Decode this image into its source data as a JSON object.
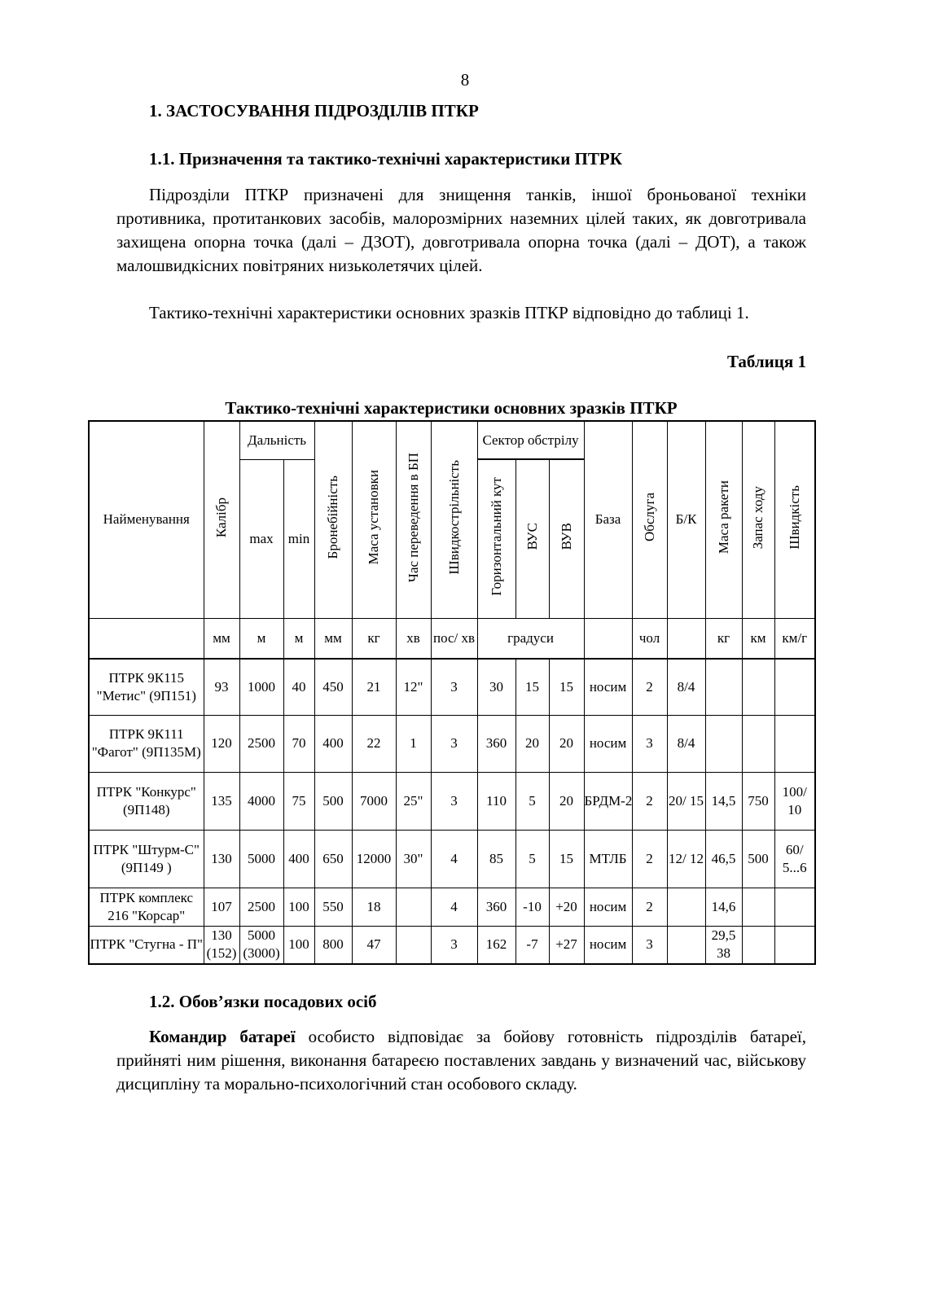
{
  "page_number": "8",
  "heading1": "1. ЗАСТОСУВАННЯ ПІДРОЗДІЛІВ ПТКР",
  "heading2": "1.1. Призначення та тактико-технічні характеристики ПТРК",
  "para1": "Підрозділи ПТКР призначені для знищення танків, іншої броньованої техніки противника, протитанкових засобів, малорозмірних наземних цілей таких, як довготривала захищена опорна точка (далі – ДЗОТ), довготривала опорна точка (далі – ДОТ), а також малошвидкісних повітряних низьколетячих цілей.",
  "para2": "Тактико-технічні характеристики основних зразків ПТКР відповідно до таблиці 1.",
  "table_label": "Таблиця 1",
  "table": {
    "title": "Тактико-технічні характеристики основних зразків ПТКР",
    "headers": {
      "name": "Найменування",
      "caliber": "Калібр",
      "range": "Дальність",
      "range_max": "max",
      "range_min": "min",
      "armor": "Бронебійність",
      "mass": "Маса установки",
      "time": "Час переведення в БП",
      "rate": "Швидкострільність",
      "sector": "Сектор обстрілу",
      "horiz": "Горизонтальний кут",
      "vus": "ВУС",
      "vuv": "ВУВ",
      "base": "База",
      "crew": "Обслуга",
      "bk": "Б/К",
      "missile_mass": "Маса  ракети",
      "range_reserve": "Запас ходу",
      "speed": "Швидкість"
    },
    "units": [
      "мм",
      "м",
      "м",
      "мм",
      "кг",
      "хв",
      "пос/ хв",
      "градуси",
      "",
      "чол",
      "",
      "кг",
      "км",
      "км/г"
    ],
    "rows": [
      {
        "name": "ПТРК 9К115 \"Метис\" (9П151)",
        "cells": [
          "93",
          "1000",
          "40",
          "450",
          "21",
          "12\"",
          "3",
          "30",
          "15",
          "15",
          "носим",
          "2",
          "8/4",
          "",
          "",
          ""
        ]
      },
      {
        "name": "ПТРК 9К111 \"Фагот\" (9П135М)",
        "cells": [
          "120",
          "2500",
          "70",
          "400",
          "22",
          "1",
          "3",
          "360",
          "20",
          "20",
          "носим",
          "3",
          "8/4",
          "",
          "",
          ""
        ]
      },
      {
        "name": "ПТРК \"Конкурс\" (9П148)",
        "cells": [
          "135",
          "4000",
          "75",
          "500",
          "7000",
          "25\"",
          "3",
          "110",
          "5",
          "20",
          "БРДМ-2",
          "2",
          "20/ 15",
          "14,5",
          "750",
          "100/ 10"
        ]
      },
      {
        "name": "ПТРК \"Штурм-С\" (9П149 )",
        "cells": [
          "130",
          "5000",
          "400",
          "650",
          "12000",
          "30\"",
          "4",
          "85",
          "5",
          "15",
          "МТЛБ",
          "2",
          "12/ 12",
          "46,5",
          "500",
          "60/ 5...6"
        ]
      },
      {
        "name": "ПТРК комплекс 216 \"Корсар\"",
        "cells": [
          "107",
          "2500",
          "100",
          "550",
          "18",
          "",
          "4",
          "360",
          "-10",
          "+20",
          "носим",
          "2",
          "",
          "14,6",
          "",
          ""
        ]
      },
      {
        "name": "ПТРК \"Стугна - П\"",
        "cells": [
          "130 (152)",
          "5000 (3000)",
          "100",
          "800",
          "47",
          "",
          "3",
          "162",
          "-7",
          "+27",
          "носим",
          "3",
          "",
          "29,5 38",
          "",
          ""
        ]
      }
    ]
  },
  "heading3": "1.2. Обов’язки посадових осіб",
  "para3_bold": "Командир батареї",
  "para3": " особисто відповідає за бойову готовність підрозділів батареї, прийняті ним рішення, виконання батареєю поставлених завдань у визначений час, військову дисципліну та морально-психологічний стан особового складу."
}
